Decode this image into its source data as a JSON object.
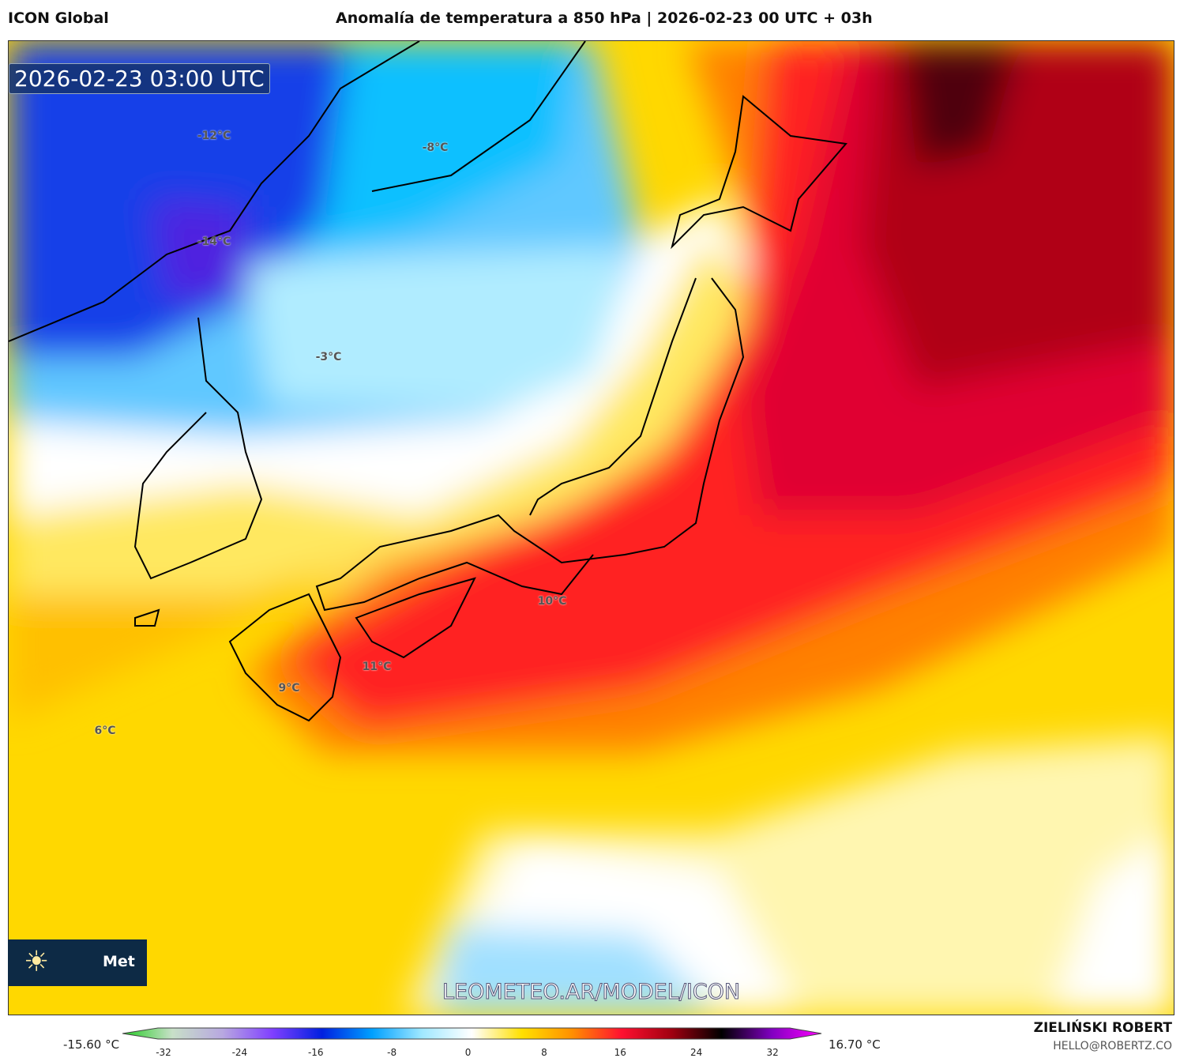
{
  "header": {
    "model": "ICON Global",
    "title": "Anomalía de temperatura a 850 hPa | 2026-02-23 00 UTC + 03h"
  },
  "map": {
    "timestamp": "2026-02-23 03:00 UTC",
    "watermark": "LEOMETEO.AR/MODEL/ICON",
    "logo_text": "Met",
    "labels": [
      {
        "text": "-12°C"
      },
      {
        "text": "-8°C"
      },
      {
        "text": "-14°C"
      },
      {
        "text": "-3°C"
      },
      {
        "text": "10°C"
      },
      {
        "text": "11°C"
      },
      {
        "text": "9°C"
      },
      {
        "text": "6°C"
      }
    ]
  },
  "colorbar": {
    "min_label": "-15.60 °C",
    "max_label": "16.70 °C",
    "ticks": [
      "-32",
      "-24",
      "-16",
      "-8",
      "0",
      "8",
      "16",
      "24",
      "32"
    ],
    "colors": [
      "#22cc22",
      "#c8e0c8",
      "#b8a8e0",
      "#8040ff",
      "#0020e0",
      "#00a0ff",
      "#a0e8ff",
      "#ffffff",
      "#ffe000",
      "#ff9000",
      "#ff1030",
      "#a00010",
      "#000000",
      "#8000c0",
      "#ff00ff"
    ]
  },
  "credits": {
    "author": "ZIELIŃSKI ROBERT",
    "email": "HELLO@ROBERTZ.CO"
  }
}
